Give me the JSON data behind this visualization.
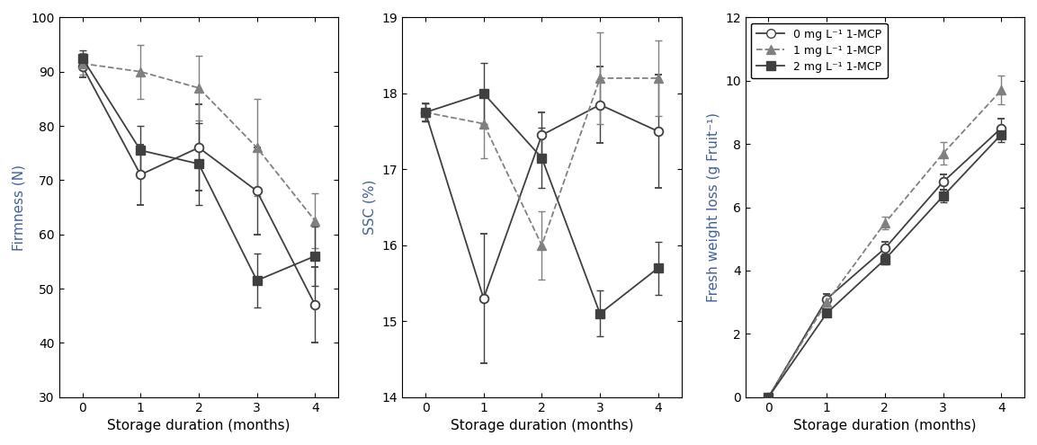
{
  "firmness": {
    "x": [
      0,
      1,
      2,
      3,
      4
    ],
    "circle": [
      91.0,
      71.0,
      76.0,
      68.0,
      47.0
    ],
    "circle_err": [
      2.0,
      5.5,
      8.0,
      8.0,
      7.0
    ],
    "triangle": [
      91.5,
      90.0,
      87.0,
      76.0,
      62.5
    ],
    "triangle_err": [
      2.0,
      5.0,
      6.0,
      9.0,
      5.0
    ],
    "square": [
      92.5,
      75.5,
      73.0,
      51.5,
      56.0
    ],
    "square_err": [
      1.5,
      4.5,
      7.5,
      5.0,
      5.5
    ],
    "ylabel": "Firmness (N)",
    "xlabel": "Storage duration (months)",
    "ylim": [
      30,
      100
    ],
    "yticks": [
      30,
      40,
      50,
      60,
      70,
      80,
      90,
      100
    ]
  },
  "ssc": {
    "x": [
      0,
      1,
      2,
      3,
      4
    ],
    "circle": [
      17.75,
      15.3,
      17.45,
      17.85,
      17.5
    ],
    "circle_err": [
      0.12,
      0.85,
      0.3,
      0.5,
      0.75
    ],
    "triangle": [
      17.75,
      17.6,
      16.0,
      18.2,
      18.2
    ],
    "triangle_err": [
      0.12,
      0.45,
      0.45,
      0.6,
      0.5
    ],
    "square": [
      17.75,
      18.0,
      17.15,
      15.1,
      15.7
    ],
    "square_err": [
      0.12,
      0.4,
      0.4,
      0.3,
      0.35
    ],
    "ylabel": "SSC (%)",
    "xlabel": "Storage duration (months)",
    "ylim": [
      14,
      19
    ],
    "yticks": [
      14,
      15,
      16,
      17,
      18,
      19
    ]
  },
  "weight_loss": {
    "x": [
      0,
      1,
      2,
      3,
      4
    ],
    "circle": [
      0.0,
      3.1,
      4.7,
      6.8,
      8.5
    ],
    "circle_err": [
      0.0,
      0.15,
      0.2,
      0.25,
      0.3
    ],
    "triangle": [
      0.0,
      3.0,
      5.5,
      7.7,
      9.7
    ],
    "triangle_err": [
      0.0,
      0.15,
      0.2,
      0.35,
      0.45
    ],
    "square": [
      0.0,
      2.65,
      4.35,
      6.35,
      8.3
    ],
    "square_err": [
      0.0,
      0.1,
      0.15,
      0.2,
      0.25
    ],
    "ylabel": "Fresh weight loss (g Fruit⁻¹)",
    "xlabel": "Storage duration (months)",
    "ylim": [
      0,
      12
    ],
    "yticks": [
      0,
      2,
      4,
      6,
      8,
      10,
      12
    ]
  },
  "legend_labels": [
    "0 mg L⁻¹ 1-MCP",
    "1 mg L⁻¹ 1-MCP",
    "2 mg L⁻¹ 1-MCP"
  ],
  "axis_label_color": "#4060a0",
  "line_color_dark": "#404040",
  "line_color_gray": "#808080",
  "marker_size": 7,
  "line_width": 1.3,
  "capsize": 3,
  "elinewidth": 1.0,
  "font_size": 11,
  "tick_font_size": 10
}
